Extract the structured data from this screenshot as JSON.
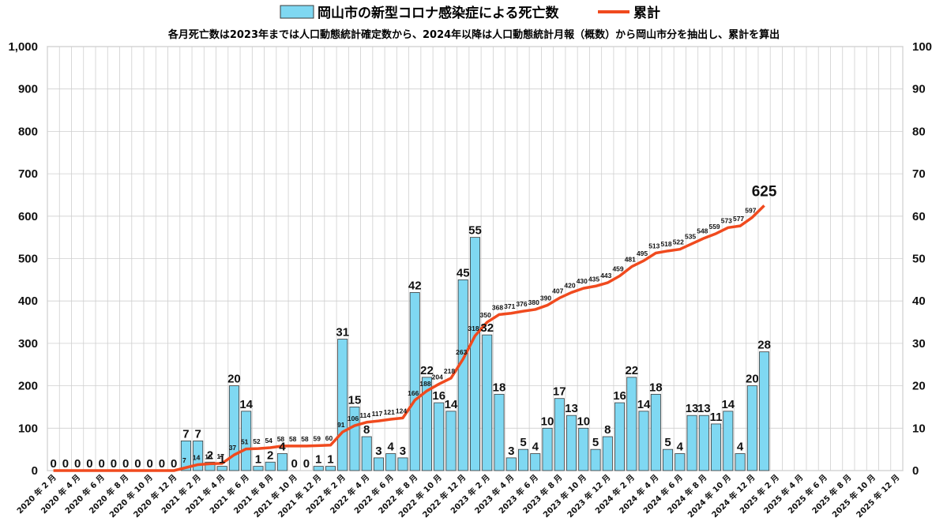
{
  "chart_data": {
    "type": "bar+line",
    "title": "",
    "subtitle": "各月死亡数は2023年までは人口動態統計確定数から、2024年以降は人口動態統計月報（概数）から岡山市分を抽出し、累計を算出",
    "legend": {
      "placement": "top",
      "bar_label": "岡山市の新型コロナ感染症による死亡数",
      "line_label": "累計"
    },
    "colors": {
      "bar": "#7fd8f2",
      "bar_stroke": "#3a3a3a",
      "line": "#f04a1e",
      "grid": "#cfcfcf"
    },
    "left_axis": {
      "min": 0,
      "max": 1000,
      "ticks": [
        "0",
        "100",
        "200",
        "300",
        "400",
        "500",
        "600",
        "700",
        "800",
        "900",
        "1,000"
      ]
    },
    "right_axis": {
      "min": 0,
      "max": 100,
      "ticks": [
        "0",
        "10",
        "20",
        "30",
        "40",
        "50",
        "60",
        "70",
        "80",
        "90",
        "100"
      ]
    },
    "grid": true,
    "x_tick_labels": [
      "2020 年 2 月",
      "2020 年 4 月",
      "2020 年 6 月",
      "2020 年 8 月",
      "2020 年 10 月",
      "2020 年 12 月",
      "2021 年 2 月",
      "2021 年 4 月",
      "2021 年 6 月",
      "2021 年 8 月",
      "2021 年 10 月",
      "2021 年 12 月",
      "2022 年 2 月",
      "2022 年 4 月",
      "2022 年 6 月",
      "2022 年 8 月",
      "2022 年 10 月",
      "2022 年 12 月",
      "2023 年 2 月",
      "2023 年 4 月",
      "2023 年 6 月",
      "2023 年 8 月",
      "2023 年 10 月",
      "2023 年 12 月",
      "2024 年 2 月",
      "2024 年 4 月",
      "2024 年 6 月",
      "2024 年 8 月",
      "2024 年 10 月",
      "2024 年 12 月",
      "2025 年 2 月",
      "2025 年 4 月",
      "2025 年 6 月",
      "2025 年 8 月",
      "2025 年 10 月",
      "2025 年 12 月"
    ],
    "slots_total": 71,
    "monthly_deaths": [
      0,
      0,
      0,
      0,
      0,
      0,
      0,
      0,
      0,
      0,
      0,
      7,
      7,
      2,
      1,
      20,
      14,
      1,
      2,
      4,
      0,
      0,
      1,
      1,
      31,
      15,
      8,
      3,
      4,
      3,
      42,
      22,
      16,
      14,
      45,
      55,
      32,
      18,
      3,
      5,
      4,
      10,
      17,
      13,
      10,
      5,
      8,
      16,
      22,
      14,
      18,
      5,
      4,
      13,
      13,
      11,
      14,
      4,
      20,
      28
    ],
    "cumulative": [
      0,
      0,
      0,
      0,
      0,
      0,
      0,
      0,
      0,
      0,
      0,
      7,
      14,
      16,
      17,
      37,
      51,
      52,
      54,
      58,
      58,
      58,
      59,
      60,
      91,
      106,
      114,
      117,
      121,
      124,
      166,
      188,
      204,
      218,
      263,
      318,
      350,
      368,
      371,
      376,
      380,
      390,
      407,
      420,
      430,
      435,
      443,
      459,
      481,
      495,
      513,
      518,
      522,
      535,
      548,
      559,
      573,
      577,
      597,
      625
    ],
    "bar_labels": [
      "0",
      "0",
      "0",
      "0",
      "0",
      "0",
      "0",
      "0",
      "0",
      "0",
      "0",
      "7",
      "7",
      "2",
      "1",
      "20",
      "14",
      "1",
      "2",
      "4",
      "0",
      "0",
      "1",
      "1",
      "31",
      "15",
      "8",
      "3",
      "4",
      "3",
      "42",
      "22",
      "16",
      "14",
      "45",
      "55",
      "32",
      "18",
      "3",
      "5",
      "4",
      "10",
      "17",
      "13",
      "10",
      "5",
      "8",
      "16",
      "22",
      "14",
      "18",
      "5",
      "4",
      "13",
      "13",
      "11",
      "14",
      "4",
      "20",
      "28"
    ],
    "cumulative_labels": [
      "0",
      "0",
      "0",
      "0",
      "0",
      "0",
      "0",
      "0",
      "0",
      "0",
      "0",
      "7",
      "14",
      "16",
      "17",
      "37",
      "51",
      "52",
      "54",
      "58",
      "58",
      "58",
      "59",
      "60",
      "91",
      "106",
      "114",
      "117",
      "121",
      "124",
      "166",
      "188",
      "204",
      "218",
      "263",
      "318",
      "350",
      "368",
      "371",
      "376",
      "380",
      "390",
      "407",
      "420",
      "430",
      "435",
      "443",
      "459",
      "481",
      "495",
      "513",
      "518",
      "522",
      "535",
      "548",
      "559",
      "573",
      "577",
      "597",
      "625"
    ]
  }
}
